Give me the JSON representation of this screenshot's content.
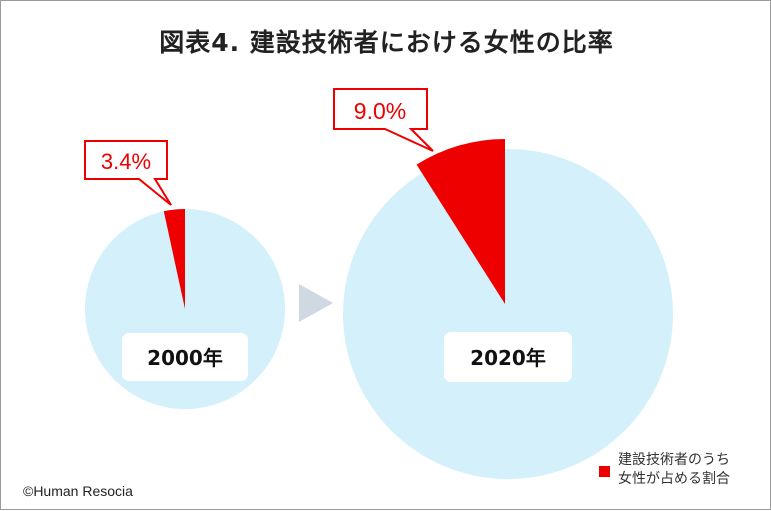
{
  "title": "図表4. 建設技術者における女性の比率",
  "credit": "©Human Resocia",
  "colors": {
    "pie_bg": "#d4f0fb",
    "female": "#ee0000",
    "arrow": "#d0d8e2"
  },
  "legend": {
    "line1": "建設技術者のうち",
    "line2": "女性が占める割合"
  },
  "chart_data": [
    {
      "type": "pie",
      "year_label": "2000年",
      "slices": [
        {
          "name": "建設技術者のうち女性が占める割合",
          "value": 3.4,
          "label": "3.4%"
        },
        {
          "name": "",
          "value": 96.6
        }
      ]
    },
    {
      "type": "pie",
      "year_label": "2020年",
      "slices": [
        {
          "name": "建設技術者のうち女性が占める割合",
          "value": 9.0,
          "label": "9.0%"
        },
        {
          "name": "",
          "value": 91.0
        }
      ]
    }
  ]
}
